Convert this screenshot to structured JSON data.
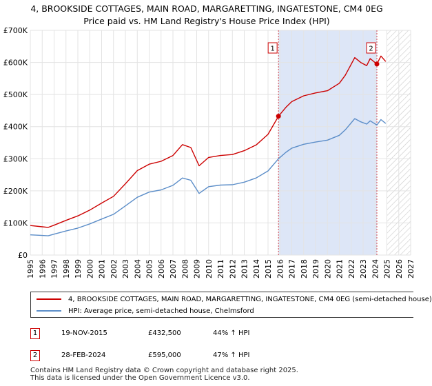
{
  "title_line1": "4, BROOKSIDE COTTAGES, MAIN ROAD, MARGARETTING, INGATESTONE, CM4 0EG",
  "title_line2": "Price paid vs. HM Land Registry's House Price Index (HPI)",
  "colors": {
    "property": "#cc0000",
    "hpi": "#5b8dc8",
    "highlight": "#dde6f7",
    "marker": "#cc0000"
  },
  "legend": {
    "property_label": "4, BROOKSIDE COTTAGES, MAIN ROAD, MARGARETTING, INGATESTONE, CM4 0EG (semi-detached house)",
    "hpi_label": "HPI: Average price, semi-detached house, Chelmsford"
  },
  "transactions": [
    {
      "id": "1",
      "date": "19-NOV-2015",
      "price": "£432,500",
      "hpi_change": "44% ↑ HPI"
    },
    {
      "id": "2",
      "date": "28-FEB-2024",
      "price": "£595,000",
      "hpi_change": "47% ↑ HPI"
    }
  ],
  "footer_line1": "Contains HM Land Registry data © Crown copyright and database right 2025.",
  "footer_line2": "This data is licensed under the Open Government Licence v3.0.",
  "chart_data": {
    "type": "line",
    "title": "4, BROOKSIDE COTTAGES, MAIN ROAD, MARGARETTING, INGATESTONE, CM4 0EG — Price paid vs. HM Land Registry's House Price Index (HPI)",
    "xlim": [
      1995,
      2027
    ],
    "ylim": [
      0,
      700000
    ],
    "x_ticks": [
      1995,
      1996,
      1997,
      1998,
      1999,
      2000,
      2001,
      2002,
      2003,
      2004,
      2005,
      2006,
      2007,
      2008,
      2009,
      2010,
      2011,
      2012,
      2013,
      2014,
      2015,
      2016,
      2017,
      2018,
      2019,
      2020,
      2021,
      2022,
      2023,
      2024,
      2025,
      2026,
      2027
    ],
    "y_ticks": [
      {
        "value": 0,
        "label": "£0"
      },
      {
        "value": 100000,
        "label": "£100K"
      },
      {
        "value": 200000,
        "label": "£200K"
      },
      {
        "value": 300000,
        "label": "£300K"
      },
      {
        "value": 400000,
        "label": "£400K"
      },
      {
        "value": 500000,
        "label": "£500K"
      },
      {
        "value": 600000,
        "label": "£600K"
      },
      {
        "value": 700000,
        "label": "£700K"
      }
    ],
    "forecast_start": 2025.0,
    "highlight_range": [
      2015.88,
      2024.16
    ],
    "series": [
      {
        "name": "4, BROOKSIDE COTTAGES, MAIN ROAD, MARGARETTING, INGATESTONE, CM4 0EG (semi-detached house)",
        "x": [
          1995,
          1996,
          1996.5,
          1997,
          1998,
          1999,
          2000,
          2001,
          2002,
          2003,
          2004,
          2005,
          2006,
          2007,
          2007.8,
          2008.5,
          2009.2,
          2010,
          2011,
          2012,
          2013,
          2014,
          2015,
          2015.88,
          2016.5,
          2017,
          2018,
          2019,
          2020,
          2021,
          2021.5,
          2022.3,
          2022.8,
          2023.3,
          2023.6,
          2024.16,
          2024.5,
          2024.9
        ],
        "values": [
          92000,
          88000,
          86000,
          93000,
          108000,
          122000,
          140000,
          162000,
          183000,
          222000,
          263000,
          283000,
          292000,
          310000,
          344000,
          335000,
          278000,
          304000,
          310000,
          313000,
          325000,
          343000,
          376000,
          432500,
          460000,
          478000,
          496000,
          505000,
          512000,
          535000,
          560000,
          615000,
          600000,
          590000,
          612000,
          595000,
          620000,
          603000
        ]
      },
      {
        "name": "HPI: Average price, semi-detached house, Chelmsford",
        "x": [
          1995,
          1996,
          1996.5,
          1997,
          1998,
          1999,
          2000,
          2001,
          2002,
          2003,
          2004,
          2005,
          2006,
          2007,
          2007.8,
          2008.5,
          2009.2,
          2010,
          2011,
          2012,
          2013,
          2014,
          2015,
          2015.88,
          2016.5,
          2017,
          2018,
          2019,
          2020,
          2021,
          2021.5,
          2022.3,
          2022.8,
          2023.3,
          2023.6,
          2024.16,
          2024.5,
          2024.9
        ],
        "values": [
          63000,
          61000,
          60000,
          65000,
          75000,
          84000,
          97000,
          112000,
          127000,
          153000,
          180000,
          196000,
          203000,
          217000,
          240000,
          233000,
          192000,
          213000,
          218000,
          219000,
          227000,
          240000,
          262000,
          300000,
          320000,
          333000,
          345000,
          352000,
          358000,
          373000,
          390000,
          425000,
          415000,
          408000,
          418000,
          405000,
          422000,
          410000
        ]
      }
    ],
    "markers": [
      {
        "label": "1",
        "x": 2015.88,
        "y": 432500
      },
      {
        "label": "2",
        "x": 2024.16,
        "y": 595000
      }
    ]
  }
}
